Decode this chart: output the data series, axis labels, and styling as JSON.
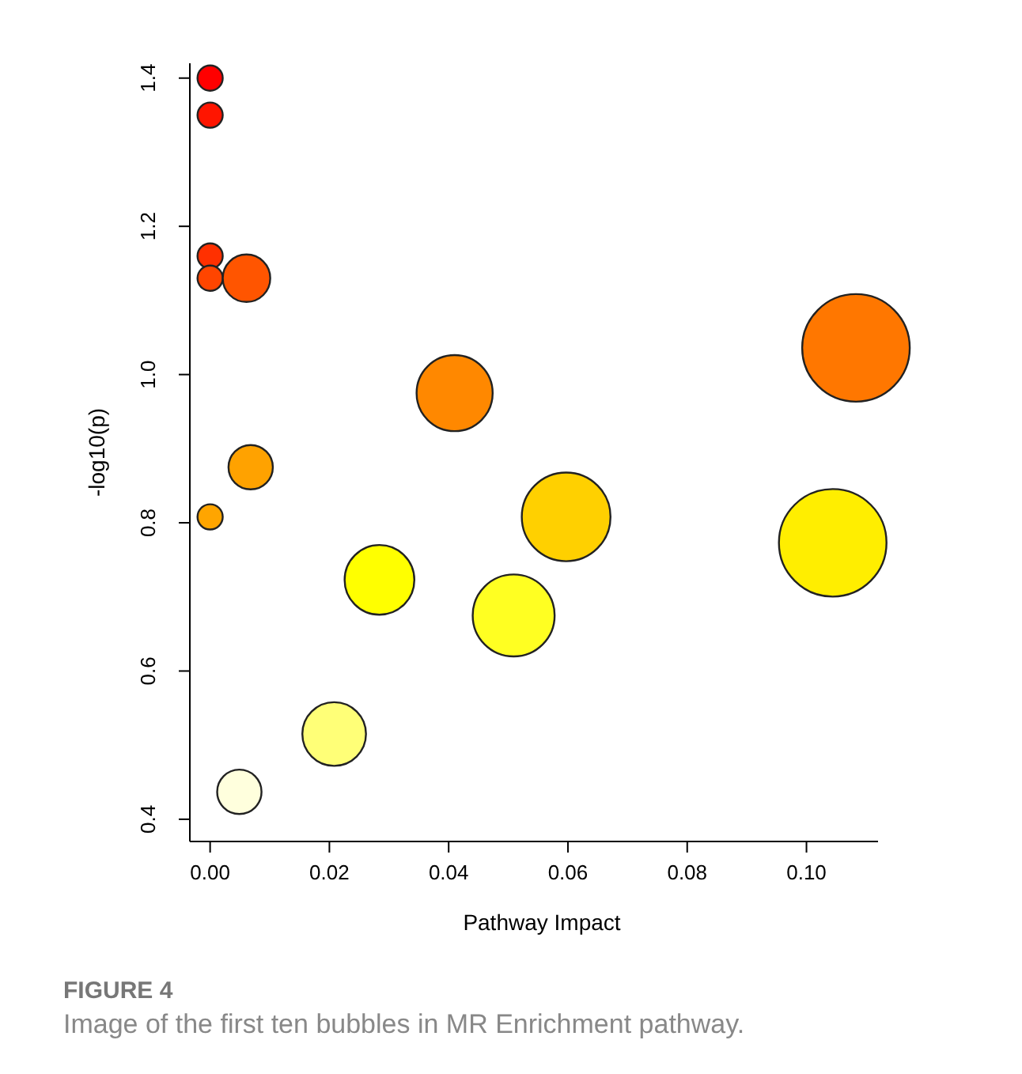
{
  "chart_data": {
    "type": "bubble",
    "xlabel": "Pathway Impact",
    "ylabel": "-log10(p)",
    "x": [
      0,
      0,
      0,
      0,
      0.0061,
      0.0068,
      0,
      0.041,
      0.0284,
      0.0208,
      0.0049,
      0.0509,
      0.0597,
      0.1083,
      0.1044
    ],
    "values": [
      1.4,
      1.35,
      1.16,
      1.13,
      1.13,
      0.875,
      0.808,
      0.975,
      0.723,
      0.515,
      0.437,
      0.675,
      0.808,
      1.036,
      0.773
    ],
    "sizes": [
      0.055,
      0.055,
      0.055,
      0.055,
      0.195,
      0.17,
      0.055,
      0.5,
      0.42,
      0.35,
      0.17,
      0.58,
      0.68,
      1,
      1
    ],
    "colors": [
      "#ff0000",
      "#ff1500",
      "#ff3000",
      "#ff4500",
      "#ff5500",
      "#ffa200",
      "#ffa500",
      "#ff8800",
      "#ffff00",
      "#ffff77",
      "#ffffdd",
      "#ffff22",
      "#ffd000",
      "#ff7700",
      "#ffee00"
    ],
    "xlim": [
      -0.0034,
      0.112
    ],
    "ylim": [
      0.37,
      1.42
    ],
    "xticks": [
      {
        "value": 0,
        "label": "0.00"
      },
      {
        "value": 0.02,
        "label": "0.02"
      },
      {
        "value": 0.04,
        "label": "0.04"
      },
      {
        "value": 0.06,
        "label": "0.06"
      },
      {
        "value": 0.08,
        "label": "0.08"
      },
      {
        "value": 0.1,
        "label": "0.10"
      }
    ],
    "yticks": [
      0.4,
      0.6,
      0.8,
      {
        "value": 1,
        "label": "1.0"
      },
      1.2,
      1.4
    ],
    "annotations": [
      "FIGURE 4",
      "Image of the first ten bubbles in MR Enrichment pathway."
    ]
  }
}
